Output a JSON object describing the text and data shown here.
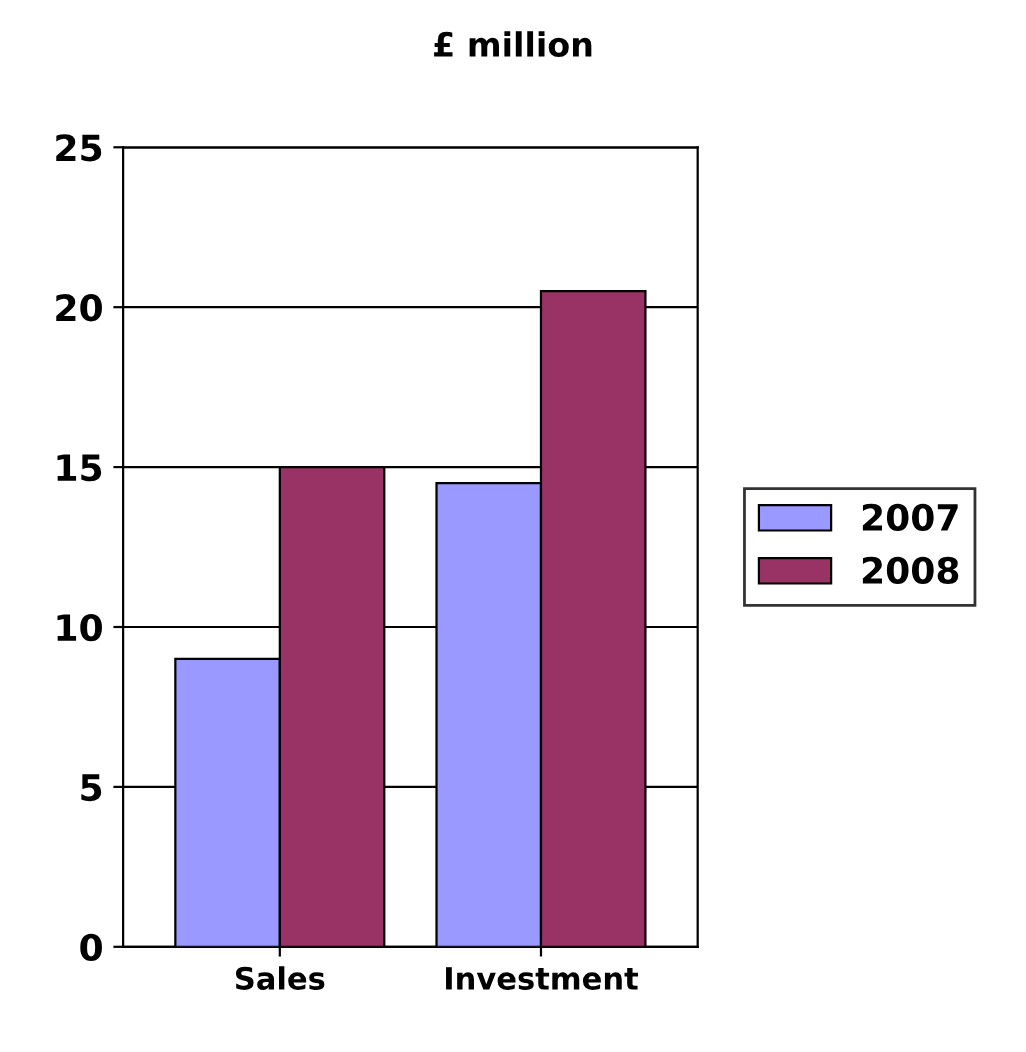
{
  "chart_data": {
    "type": "bar",
    "title": "£ million",
    "categories": [
      "Sales",
      "Investment"
    ],
    "series": [
      {
        "name": "2007",
        "color": "#9999ff",
        "values": [
          9,
          14.5
        ]
      },
      {
        "name": "2008",
        "color": "#993366",
        "values": [
          15,
          20.5
        ]
      }
    ],
    "ylim": [
      0,
      25
    ],
    "yticks": [
      0,
      5,
      10,
      15,
      20,
      25
    ],
    "grid": "y",
    "legend": "right"
  }
}
